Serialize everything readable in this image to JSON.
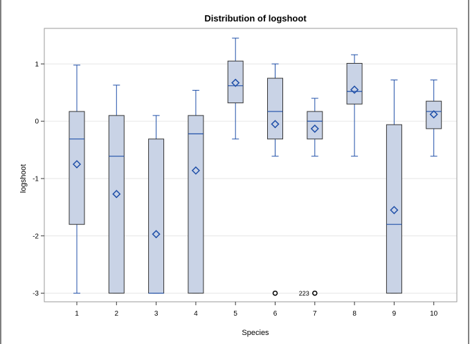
{
  "chart_data": {
    "type": "box",
    "title": "Distribution of logshoot",
    "xlabel": "Species",
    "ylabel": "logshoot",
    "ylim": [
      -3.15,
      1.62
    ],
    "yticks": [
      1,
      0,
      -1,
      -2,
      -3
    ],
    "categories": [
      "1",
      "2",
      "3",
      "4",
      "5",
      "6",
      "7",
      "8",
      "9",
      "10"
    ],
    "boxes": [
      {
        "category": "1",
        "whisker_low": -3.0,
        "q1": -1.8,
        "median": -0.31,
        "q3": 0.17,
        "whisker_high": 0.98,
        "mean": -0.75
      },
      {
        "category": "2",
        "whisker_low": -3.0,
        "q1": -3.0,
        "median": -0.61,
        "q3": 0.1,
        "whisker_high": 0.63,
        "mean": -1.27
      },
      {
        "category": "3",
        "whisker_low": -3.0,
        "q1": -3.0,
        "median": -3.0,
        "q3": -0.31,
        "whisker_high": 0.1,
        "mean": -1.97
      },
      {
        "category": "4",
        "whisker_low": -3.0,
        "q1": -3.0,
        "median": -0.22,
        "q3": 0.1,
        "whisker_high": 0.54,
        "mean": -0.86
      },
      {
        "category": "5",
        "whisker_low": -0.31,
        "q1": 0.32,
        "median": 0.62,
        "q3": 1.05,
        "whisker_high": 1.45,
        "mean": 0.67
      },
      {
        "category": "6",
        "whisker_low": -0.61,
        "q1": -0.31,
        "median": 0.17,
        "q3": 0.75,
        "whisker_high": 1.0,
        "mean": -0.05
      },
      {
        "category": "7",
        "whisker_low": -0.61,
        "q1": -0.31,
        "median": 0.0,
        "q3": 0.17,
        "whisker_high": 0.4,
        "mean": -0.13
      },
      {
        "category": "8",
        "whisker_low": -0.61,
        "q1": 0.3,
        "median": 0.52,
        "q3": 1.01,
        "whisker_high": 1.16,
        "mean": 0.55
      },
      {
        "category": "9",
        "whisker_low": -3.0,
        "q1": -3.0,
        "median": -1.8,
        "q3": -0.06,
        "whisker_high": 0.72,
        "mean": -1.55
      },
      {
        "category": "10",
        "whisker_low": -0.61,
        "q1": -0.13,
        "median": 0.17,
        "q3": 0.35,
        "whisker_high": 0.72,
        "mean": 0.12
      }
    ],
    "outliers": [
      {
        "category": "6",
        "value": -3.0,
        "label": ""
      },
      {
        "category": "7",
        "value": -3.0,
        "label": "223"
      }
    ],
    "grid": true,
    "legend": "none",
    "colors": {
      "box_fill": "#c9d3e6",
      "box_stroke": "#333333",
      "whisker": "#1f4fa8",
      "median": "#1f4fa8",
      "mean_marker": "#1f4fa8",
      "grid": "#e6e6e6",
      "outlier": "#000000"
    }
  }
}
